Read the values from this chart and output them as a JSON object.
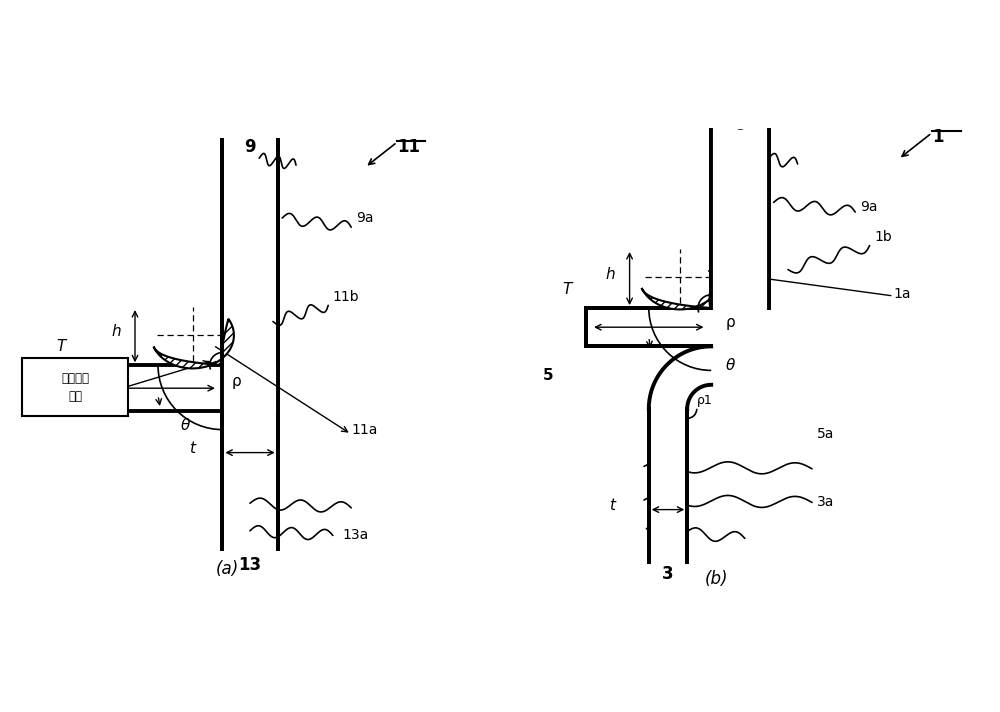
{
  "bg_color": "#ffffff",
  "line_color": "#000000",
  "fig_width": 10.0,
  "fig_height": 7.12,
  "label_a": "(a)",
  "label_b": "(b)",
  "chinese_text": "裂纹传播\n方向"
}
